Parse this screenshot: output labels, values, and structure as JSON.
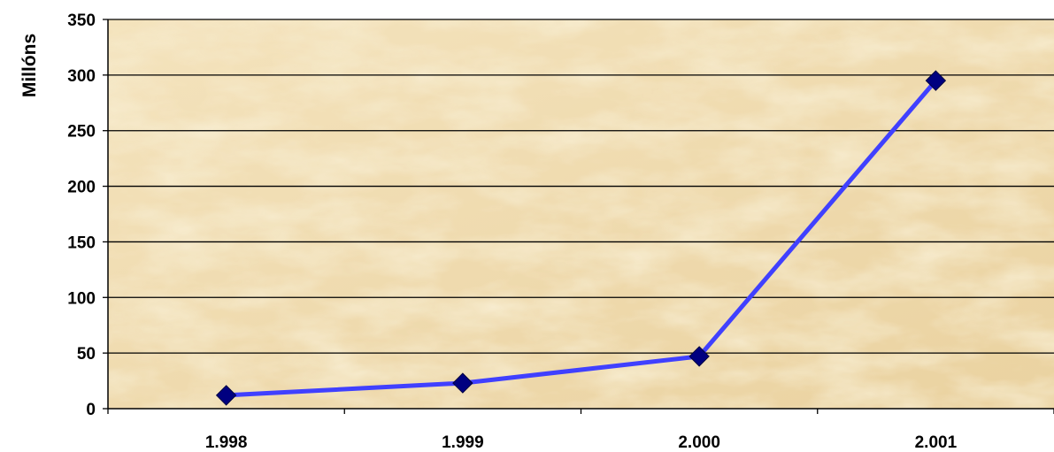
{
  "chart_data": {
    "type": "line",
    "title": "",
    "xlabel": "",
    "ylabel": "Millóns",
    "categories": [
      "1.998",
      "1.999",
      "2.000",
      "2.001"
    ],
    "series": [
      {
        "values": [
          12,
          23,
          47,
          295
        ]
      }
    ],
    "ylim": [
      0,
      350
    ],
    "yticks": [
      "0",
      "50",
      "100",
      "150",
      "200",
      "250",
      "300",
      "350"
    ],
    "grid": true,
    "legend": "none",
    "colors": {
      "line": "#4040ff",
      "marker": "#000080",
      "plot_background": "#efd9a8",
      "grid": "#000000"
    }
  }
}
